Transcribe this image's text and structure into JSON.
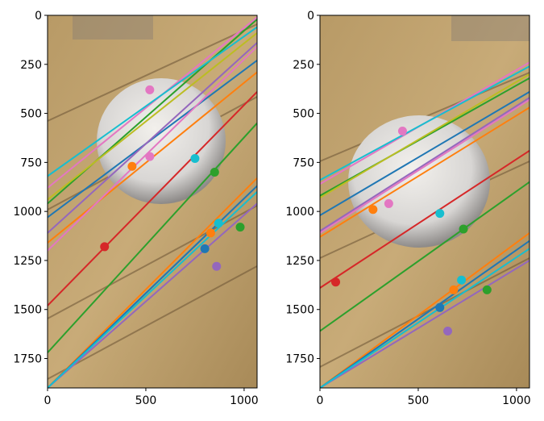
{
  "chart_data": [
    {
      "type": "scatter",
      "background": "photo-wood-ball",
      "xlim": [
        0,
        1066
      ],
      "ylim": [
        1900,
        0
      ],
      "xticks": [
        0,
        500,
        1000
      ],
      "yticks": [
        0,
        250,
        500,
        750,
        1000,
        1250,
        1500,
        1750
      ],
      "lines": [
        {
          "color": "#1f77b4",
          "y_at_0": 1030,
          "y_at_1066": 230
        },
        {
          "color": "#ff7f0e",
          "y_at_0": 1160,
          "y_at_1066": 290
        },
        {
          "color": "#2ca02c",
          "y_at_0": 960,
          "y_at_1066": 20
        },
        {
          "color": "#d62728",
          "y_at_0": 1480,
          "y_at_1066": 390
        },
        {
          "color": "#9467bd",
          "y_at_0": 1110,
          "y_at_1066": 140
        },
        {
          "color": "#e377c2",
          "y_at_0": 880,
          "y_at_1066": 10
        },
        {
          "color": "#17becf",
          "y_at_0": 820,
          "y_at_1066": 60
        },
        {
          "color": "#2ca02c",
          "y_at_0": 1720,
          "y_at_1066": 550
        },
        {
          "color": "#e377c2",
          "y_at_0": 1200,
          "y_at_1066": 160
        },
        {
          "color": "#bcbd22",
          "y_at_0": 940,
          "y_at_1066": 90
        },
        {
          "color": "#ff7f0e",
          "y_at_0": 1900,
          "y_at_1066": 830
        },
        {
          "color": "#1f77b4",
          "y_at_0": 1900,
          "y_at_1066": 870
        },
        {
          "color": "#9467bd",
          "y_at_0": 1900,
          "y_at_1066": 960
        },
        {
          "color": "#17becf",
          "y_at_0": 1900,
          "y_at_1066": 900
        }
      ],
      "points": [
        {
          "x": 290,
          "y": 1180,
          "color": "#d62728"
        },
        {
          "x": 520,
          "y": 380,
          "color": "#e377c2"
        },
        {
          "x": 430,
          "y": 770,
          "color": "#ff7f0e"
        },
        {
          "x": 520,
          "y": 720,
          "color": "#e377c2"
        },
        {
          "x": 750,
          "y": 730,
          "color": "#17becf"
        },
        {
          "x": 850,
          "y": 800,
          "color": "#2ca02c"
        },
        {
          "x": 830,
          "y": 1110,
          "color": "#ff7f0e"
        },
        {
          "x": 800,
          "y": 1190,
          "color": "#1f77b4"
        },
        {
          "x": 860,
          "y": 1280,
          "color": "#9467bd"
        },
        {
          "x": 980,
          "y": 1080,
          "color": "#2ca02c"
        },
        {
          "x": 870,
          "y": 1060,
          "color": "#17becf"
        }
      ]
    },
    {
      "type": "scatter",
      "background": "photo-wood-ball",
      "xlim": [
        0,
        1066
      ],
      "ylim": [
        1900,
        0
      ],
      "xticks": [
        0,
        500,
        1000
      ],
      "yticks": [
        0,
        250,
        500,
        750,
        1000,
        1250,
        1500,
        1750
      ],
      "lines": [
        {
          "color": "#1f77b4",
          "y_at_0": 1020,
          "y_at_1066": 390
        },
        {
          "color": "#ff7f0e",
          "y_at_0": 1130,
          "y_at_1066": 470
        },
        {
          "color": "#2ca02c",
          "y_at_0": 920,
          "y_at_1066": 320
        },
        {
          "color": "#d62728",
          "y_at_0": 1390,
          "y_at_1066": 690
        },
        {
          "color": "#9467bd",
          "y_at_0": 1100,
          "y_at_1066": 420
        },
        {
          "color": "#e377c2",
          "y_at_0": 860,
          "y_at_1066": 240
        },
        {
          "color": "#17becf",
          "y_at_0": 840,
          "y_at_1066": 260
        },
        {
          "color": "#2ca02c",
          "y_at_0": 1610,
          "y_at_1066": 850
        },
        {
          "color": "#e377c2",
          "y_at_0": 1110,
          "y_at_1066": 430
        },
        {
          "color": "#bcbd22",
          "y_at_0": 930,
          "y_at_1066": 300
        },
        {
          "color": "#ff7f0e",
          "y_at_0": 1900,
          "y_at_1066": 1110
        },
        {
          "color": "#1f77b4",
          "y_at_0": 1900,
          "y_at_1066": 1150
        },
        {
          "color": "#9467bd",
          "y_at_0": 1900,
          "y_at_1066": 1250
        },
        {
          "color": "#17becf",
          "y_at_0": 1900,
          "y_at_1066": 1190
        }
      ],
      "points": [
        {
          "x": 80,
          "y": 1360,
          "color": "#d62728"
        },
        {
          "x": 420,
          "y": 590,
          "color": "#e377c2"
        },
        {
          "x": 270,
          "y": 990,
          "color": "#ff7f0e"
        },
        {
          "x": 350,
          "y": 960,
          "color": "#e377c2"
        },
        {
          "x": 610,
          "y": 1010,
          "color": "#17becf"
        },
        {
          "x": 730,
          "y": 1090,
          "color": "#2ca02c"
        },
        {
          "x": 680,
          "y": 1400,
          "color": "#ff7f0e"
        },
        {
          "x": 610,
          "y": 1490,
          "color": "#1f77b4"
        },
        {
          "x": 650,
          "y": 1610,
          "color": "#9467bd"
        },
        {
          "x": 850,
          "y": 1400,
          "color": "#2ca02c"
        },
        {
          "x": 720,
          "y": 1350,
          "color": "#17becf"
        }
      ]
    }
  ]
}
